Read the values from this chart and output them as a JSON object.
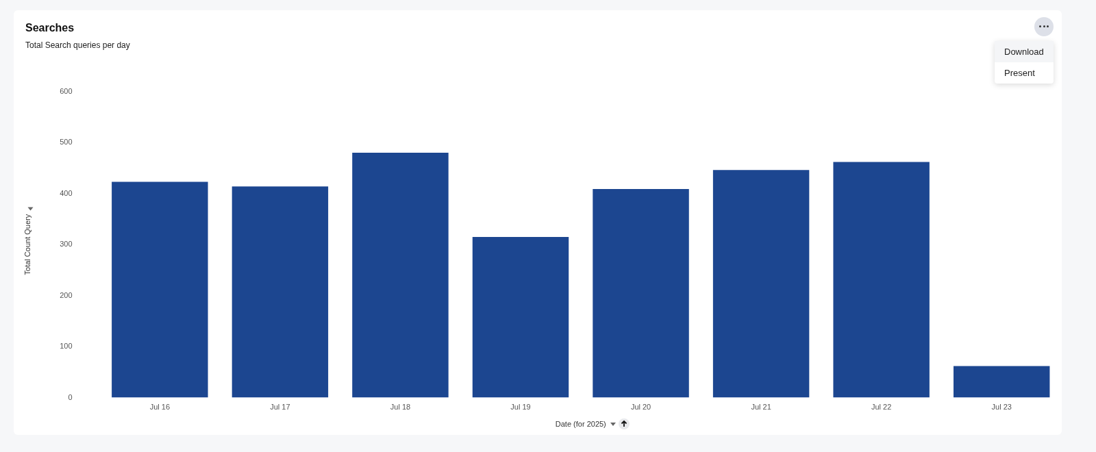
{
  "chart_data": {
    "type": "bar",
    "title": "Searches",
    "subtitle": "Total Search queries per day",
    "xlabel": "Date (for 2025)",
    "ylabel": "Total Count Query",
    "categories": [
      "Jul 16",
      "Jul 17",
      "Jul 18",
      "Jul 19",
      "Jul 20",
      "Jul 21",
      "Jul 22",
      "Jul 23"
    ],
    "values": [
      423,
      414,
      480,
      315,
      409,
      446,
      462,
      62
    ],
    "color": "#1c4690",
    "ylim": [
      0,
      600
    ],
    "yticks": [
      0,
      100,
      200,
      300,
      400,
      500,
      600
    ],
    "grid": false,
    "legend": false,
    "annotations": [
      "Download",
      "Present"
    ]
  }
}
